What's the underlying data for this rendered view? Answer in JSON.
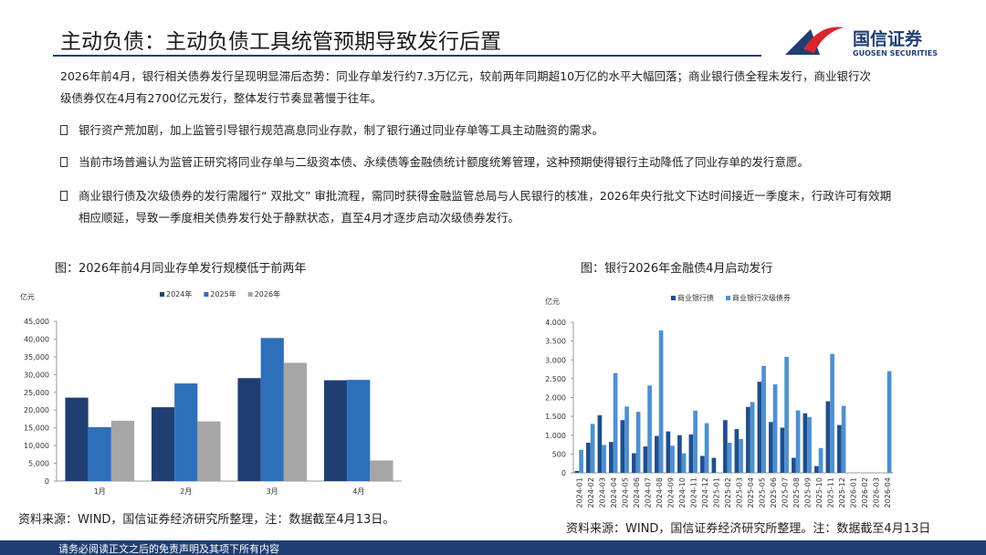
{
  "header": {
    "title": "主动负债：主动负债工具统管预期导致发行后置",
    "logo_name": "国信证券",
    "logo_sub": "GUOSEN SECURITIES"
  },
  "summary": "2026年前4月，银行相关债券发行呈现明显滞后态势：同业存单发行约7.3万亿元，较前两年同期超10万亿的水平大幅回落；商业银行债全程未发行，商业银行次级债券仅在4月有2700亿元发行，整体发行节奏显著慢于往年。",
  "bullets": [
    "银行资产荒加剧，加上监管引导银行规范高息同业存款，制了银行通过同业存单等工具主动融资的需求。",
    "当前市场普遍认为监管正研究将同业存单与二级资本债、永续债等金融债统计额度统筹管理，这种预期使得银行主动降低了同业存单的发行意愿。",
    "商业银行债及次级债券的发行需履行“ 双批文” 审批流程，需同时获得金融监管总局与人民银行的核准，2026年央行批文下达时间接近一季度末，行政许可有效期相应顺延，导致一季度相关债券发行处于静默状态，直至4月才逐步启动次级债券发行。"
  ],
  "chart_data": [
    {
      "type": "bar",
      "title": "图：2026年前4月同业存单发行规模低于前两年",
      "ylabel": "亿元",
      "categories": [
        "1月",
        "2月",
        "3月",
        "4月"
      ],
      "series": [
        {
          "name": "2024年",
          "color": "#1f3f73",
          "values": [
            23500,
            20800,
            29000,
            28400
          ]
        },
        {
          "name": "2025年",
          "color": "#2e6fba",
          "values": [
            15200,
            27500,
            40300,
            28500
          ]
        },
        {
          "name": "2026年",
          "color": "#a6a6a6",
          "values": [
            17000,
            16800,
            33300,
            5800
          ]
        }
      ],
      "ylim": [
        0,
        45000
      ],
      "yticks": [
        0,
        {
          "value": 5000,
          "label": "5,000"
        },
        {
          "value": 10000,
          "label": "10,000"
        },
        {
          "value": 15000,
          "label": "15,000"
        },
        {
          "value": 20000,
          "label": "20,000"
        },
        {
          "value": 25000,
          "label": "25,000"
        },
        {
          "value": 30000,
          "label": "30,000"
        },
        {
          "value": 35000,
          "label": "35,000"
        },
        {
          "value": 40000,
          "label": "40,000"
        },
        {
          "value": 45000,
          "label": "45,000"
        }
      ],
      "source": "资料来源：WIND，国信证券经济研究所整理，注：数据截至4月13日。"
    },
    {
      "type": "bar",
      "title": "图：银行2026年金融债4月启动发行",
      "ylabel": "亿元",
      "categories": [
        "2024-01",
        "2024-02",
        "2024-03",
        "2024-04",
        "2024-05",
        "2024-06",
        "2024-07",
        "2024-08",
        "2024-09",
        "2024-10",
        "2024-11",
        "2024-12",
        "2025-01",
        "2025-02",
        "2025-03",
        "2025-04",
        "2025-05",
        "2025-06",
        "2025-07",
        "2025-08",
        "2025-09",
        "2025-10",
        "2025-11",
        "2025-12",
        "2026-01",
        "2026-02",
        "2026-03",
        "2026-04"
      ],
      "series": [
        {
          "name": "商业银行债",
          "color": "#1f4e8c",
          "values": [
            50,
            800,
            1530,
            820,
            1400,
            520,
            700,
            980,
            1100,
            1000,
            1020,
            450,
            400,
            1400,
            1160,
            1750,
            2420,
            1350,
            1200,
            400,
            1580,
            180,
            1900,
            1270,
            0,
            0,
            0,
            0
          ]
        },
        {
          "name": "商业银行次级债券",
          "color": "#4f8fd0",
          "values": [
            610,
            1300,
            740,
            2650,
            1760,
            1620,
            2320,
            3780,
            720,
            520,
            1650,
            1320,
            0,
            800,
            900,
            1880,
            2840,
            2350,
            3080,
            1660,
            1480,
            660,
            3160,
            1780,
            0,
            0,
            0,
            2700
          ]
        }
      ],
      "ylim": [
        0,
        4000
      ],
      "yticks": [
        0,
        500,
        {
          "value": 1000,
          "label": "1.000"
        },
        {
          "value": 1500,
          "label": "1.500"
        },
        {
          "value": 2000,
          "label": "2.000"
        },
        {
          "value": 2500,
          "label": "2.500"
        },
        {
          "value": 3000,
          "label": "3.000"
        },
        {
          "value": 3500,
          "label": "3.500"
        },
        {
          "value": 4000,
          "label": "4.000"
        }
      ],
      "source": "资料来源：WIND，国信证券经济研究所整理。注：数据截至4月13日"
    }
  ],
  "footer": "请务必阅读正文之后的免责声明及其项下所有内容"
}
